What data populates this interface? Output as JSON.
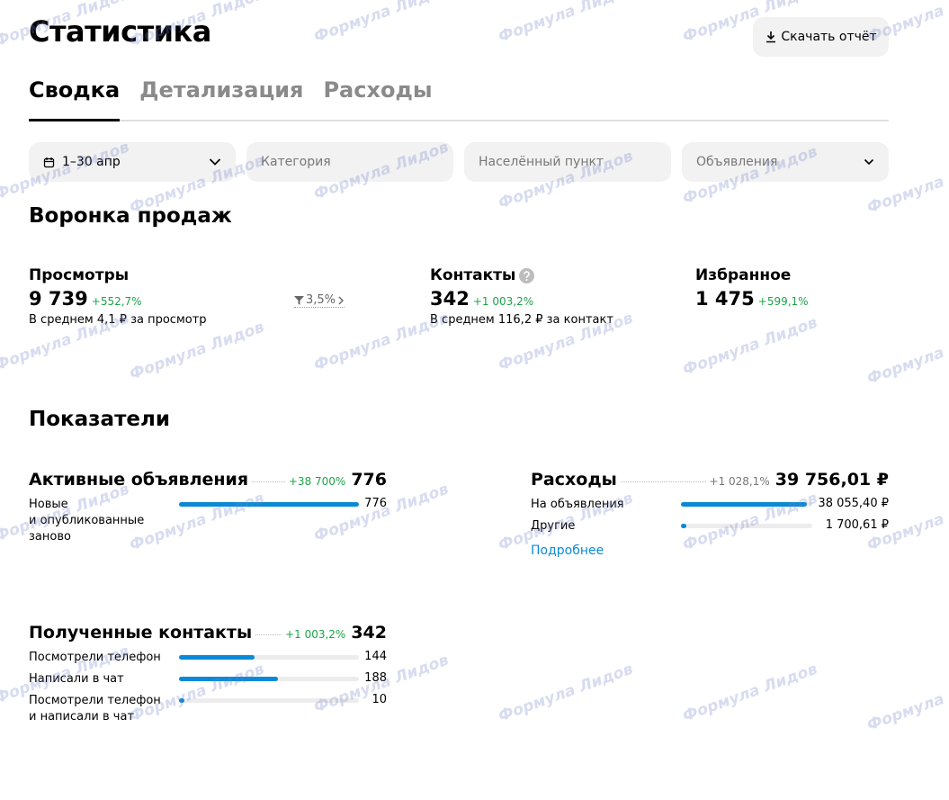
{
  "header": {
    "title": "Статистика",
    "download_button": "Скачать отчёт"
  },
  "tabs": [
    "Сводка",
    "Детализация",
    "Расходы"
  ],
  "filters": {
    "period": "1–30 апр",
    "category": "Категория",
    "locality": "Населённый пункт",
    "listings": "Объявления"
  },
  "funnel": {
    "title": "Воронка продаж",
    "views": {
      "label": "Просмотры",
      "value": "9 739",
      "change": "+552,7%",
      "note": "В среднем 4,1 ₽ за просмотр",
      "conversion": "3,5%"
    },
    "contacts": {
      "label": "Контакты",
      "value": "342",
      "change": "+1 003,2%",
      "note": "В среднем 116,2 ₽ за контакт"
    },
    "favorites": {
      "label": "Избранное",
      "value": "1 475",
      "change": "+599,1%"
    }
  },
  "metrics": {
    "title": "Показатели",
    "active_listings": {
      "title": "Активные объявления",
      "change": "+38 700%",
      "total": 776,
      "rows": [
        {
          "label": "Новые\nи опубликованные\nзаново",
          "value": 776
        }
      ]
    },
    "expenses": {
      "title": "Расходы",
      "change": "+1 028,1%",
      "total": {
        "value": 39756.01,
        "label": "39 756,01 ₽"
      },
      "rows": [
        {
          "label": "На объявления",
          "value": {
            "value": 38055.4,
            "label": "38 055,40 ₽"
          }
        },
        {
          "label": "Другие",
          "value": {
            "value": 1700.61,
            "label": "1 700,61 ₽"
          }
        }
      ],
      "more_link": "Подробнее"
    },
    "received_contacts": {
      "title": "Полученные контакты",
      "change": "+1 003,2%",
      "total": 342,
      "rows": [
        {
          "label": "Посмотрели телефон",
          "value": 144
        },
        {
          "label": "Написали в чат",
          "value": 188
        },
        {
          "label": "Посмотрели телефон\nи написали в чат",
          "value": 10
        }
      ]
    }
  },
  "watermark": "Формула Лидов"
}
